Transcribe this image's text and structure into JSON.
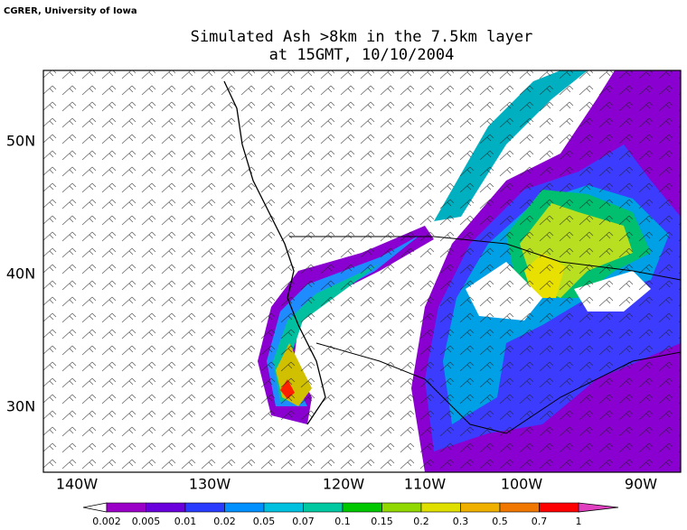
{
  "header": {
    "credit": "CGRER, University of Iowa",
    "title": [
      "Simulated Ash >8km in the 7.5km layer",
      "at 15GMT, 10/10/2004"
    ]
  },
  "map": {
    "lon_labels": [
      "140W",
      "130W",
      "120W",
      "110W",
      "100W",
      "90W"
    ],
    "lat_labels": [
      "50N",
      "40N",
      "30N"
    ]
  },
  "colorbar": {
    "labels": [
      "0.002",
      "0.005",
      "0.01",
      "0.02",
      "0.05",
      "0.07",
      "0.1",
      "0.15",
      "0.2",
      "0.3",
      "0.5",
      "0.7",
      "1"
    ],
    "colors": [
      "#9b00c8",
      "#6a00dc",
      "#2a3cff",
      "#0090ff",
      "#00c0e0",
      "#00c8a0",
      "#00c800",
      "#90d800",
      "#e0e000",
      "#f0b000",
      "#f07800",
      "#ff0000"
    ]
  }
}
